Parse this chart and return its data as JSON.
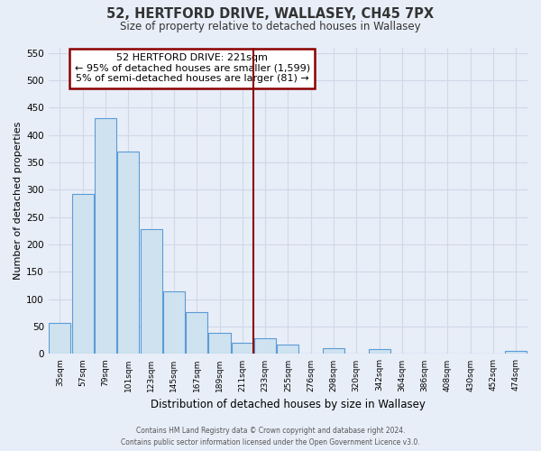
{
  "title": "52, HERTFORD DRIVE, WALLASEY, CH45 7PX",
  "subtitle": "Size of property relative to detached houses in Wallasey",
  "xlabel": "Distribution of detached houses by size in Wallasey",
  "ylabel": "Number of detached properties",
  "bar_labels": [
    "35sqm",
    "57sqm",
    "79sqm",
    "101sqm",
    "123sqm",
    "145sqm",
    "167sqm",
    "189sqm",
    "211sqm",
    "233sqm",
    "255sqm",
    "276sqm",
    "298sqm",
    "320sqm",
    "342sqm",
    "364sqm",
    "386sqm",
    "408sqm",
    "430sqm",
    "452sqm",
    "474sqm"
  ],
  "bar_values": [
    57,
    293,
    430,
    369,
    228,
    114,
    77,
    38,
    21,
    29,
    18,
    0,
    11,
    0,
    9,
    0,
    0,
    0,
    0,
    0,
    5
  ],
  "bar_color": "#cfe2f0",
  "bar_edge_color": "#5b9bd5",
  "vline_color": "#8b0000",
  "annotation_line1": "52 HERTFORD DRIVE: 221sqm",
  "annotation_line2": "← 95% of detached houses are smaller (1,599)",
  "annotation_line3": "5% of semi-detached houses are larger (81) →",
  "annotation_box_color": "#ffffff",
  "annotation_box_edge": "#8b0000",
  "ylim": [
    0,
    560
  ],
  "yticks": [
    0,
    50,
    100,
    150,
    200,
    250,
    300,
    350,
    400,
    450,
    500,
    550
  ],
  "footer_line1": "Contains HM Land Registry data © Crown copyright and database right 2024.",
  "footer_line2": "Contains public sector information licensed under the Open Government Licence v3.0.",
  "bg_color": "#e8eef8",
  "grid_color": "#d0d8e8",
  "plot_bg_color": "#e8eef8"
}
